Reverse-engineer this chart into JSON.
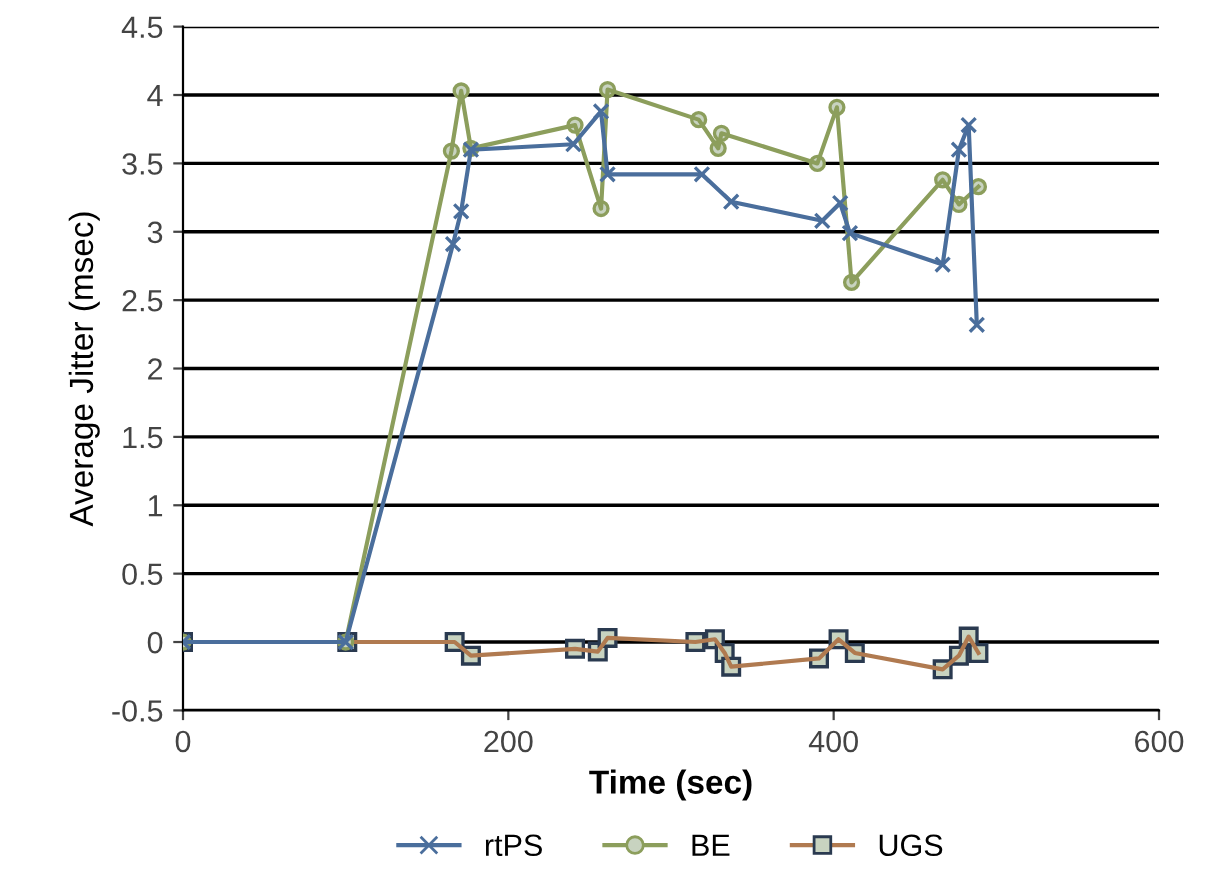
{
  "chart_data": {
    "type": "line",
    "xlabel": "Time (sec)",
    "ylabel": "Average Jitter (msec)",
    "xlim": [
      0,
      600
    ],
    "xticks": [
      0,
      200,
      400,
      600
    ],
    "ylim": [
      -0.5,
      4.5
    ],
    "yticks": [
      -0.5,
      0,
      0.5,
      1,
      1.5,
      2,
      2.5,
      3,
      3.5,
      4,
      4.5
    ],
    "grid": "y",
    "legend": "bottom",
    "series": [
      {
        "name": "rtPS",
        "color": "#4a6e9c",
        "marker": "cross",
        "x": [
          0,
          100,
          166,
          171,
          177,
          240,
          257,
          261,
          319,
          337,
          393,
          404,
          410,
          467,
          477,
          483,
          488
        ],
        "values": [
          0,
          0,
          2.91,
          3.15,
          3.6,
          3.64,
          3.88,
          3.42,
          3.42,
          3.22,
          3.08,
          3.21,
          2.99,
          2.76,
          3.6,
          3.78,
          2.32
        ]
      },
      {
        "name": "BE",
        "color": "#8c9e5c",
        "marker": "circle",
        "x": [
          0,
          100,
          165,
          171,
          177,
          241,
          257,
          261,
          317,
          329,
          331,
          390,
          402,
          411,
          467,
          477,
          489
        ],
        "values": [
          0,
          0,
          3.59,
          4.03,
          3.61,
          3.78,
          3.17,
          4.04,
          3.82,
          3.61,
          3.72,
          3.5,
          3.91,
          2.63,
          3.38,
          3.2,
          3.33
        ]
      },
      {
        "name": "UGS",
        "color": "#b07a50",
        "marker": "square",
        "x": [
          0,
          101,
          167,
          177,
          241,
          255,
          261,
          315,
          327,
          333,
          337,
          391,
          403,
          413,
          467,
          477,
          483,
          489
        ],
        "values": [
          0,
          0,
          0,
          -0.1,
          -0.05,
          -0.07,
          0.03,
          0,
          0.02,
          -0.08,
          -0.18,
          -0.12,
          0.02,
          -0.08,
          -0.2,
          -0.1,
          0.04,
          -0.08
        ]
      }
    ]
  }
}
